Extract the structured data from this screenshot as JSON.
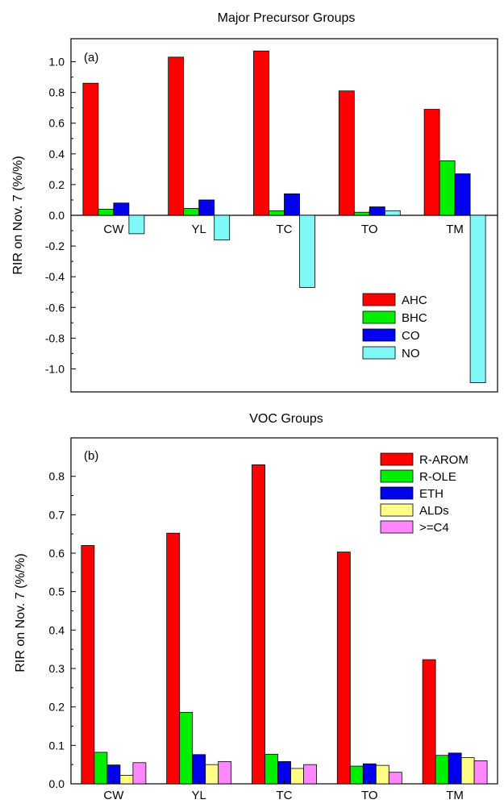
{
  "chart_data": [
    {
      "type": "bar",
      "panel_label": "(a)",
      "title": "Major Precursor Groups",
      "xlabel": "",
      "ylabel": "RIR on Nov. 7 (%/%)",
      "ylim": [
        -1.15,
        1.15
      ],
      "yticks": [
        "-1.0",
        "-0.8",
        "-0.6",
        "-0.4",
        "-0.2",
        "0.0",
        "0.2",
        "0.4",
        "0.6",
        "0.8",
        "1.0"
      ],
      "categories": [
        "CW",
        "YL",
        "TC",
        "TO",
        "TM"
      ],
      "legend_position": "bottom-right",
      "series": [
        {
          "name": "AHC",
          "color": "#ff0000",
          "values": [
            0.86,
            1.03,
            1.07,
            0.81,
            0.69
          ]
        },
        {
          "name": "BHC",
          "color": "#00ee00",
          "values": [
            0.04,
            0.045,
            0.03,
            0.02,
            0.355
          ]
        },
        {
          "name": "CO",
          "color": "#0000ee",
          "values": [
            0.08,
            0.1,
            0.14,
            0.055,
            0.27
          ]
        },
        {
          "name": "NO",
          "color": "#7ff8f8",
          "values": [
            -0.12,
            -0.16,
            -0.47,
            0.03,
            -1.09
          ]
        }
      ]
    },
    {
      "type": "bar",
      "panel_label": "(b)",
      "title": "VOC Groups",
      "xlabel": "",
      "ylabel": "RIR on Nov. 7 (%/%)",
      "ylim": [
        0,
        0.9
      ],
      "yticks": [
        "0.0",
        "0.1",
        "0.2",
        "0.3",
        "0.4",
        "0.5",
        "0.6",
        "0.7",
        "0.8"
      ],
      "categories": [
        "CW",
        "YL",
        "TC",
        "TO",
        "TM"
      ],
      "legend_position": "top-right",
      "series": [
        {
          "name": "R-AROM",
          "color": "#ff0000",
          "values": [
            0.62,
            0.652,
            0.83,
            0.603,
            0.323
          ]
        },
        {
          "name": "R-OLE",
          "color": "#00ee00",
          "values": [
            0.082,
            0.186,
            0.077,
            0.046,
            0.074
          ]
        },
        {
          "name": "ETH",
          "color": "#0000ee",
          "values": [
            0.049,
            0.076,
            0.058,
            0.052,
            0.08
          ]
        },
        {
          "name": "ALDs",
          "color": "#ffff88",
          "values": [
            0.022,
            0.05,
            0.04,
            0.048,
            0.068
          ]
        },
        {
          "name": ">=C4",
          "color": "#ff88ff",
          "values": [
            0.055,
            0.058,
            0.05,
            0.03,
            0.06
          ]
        }
      ]
    }
  ]
}
